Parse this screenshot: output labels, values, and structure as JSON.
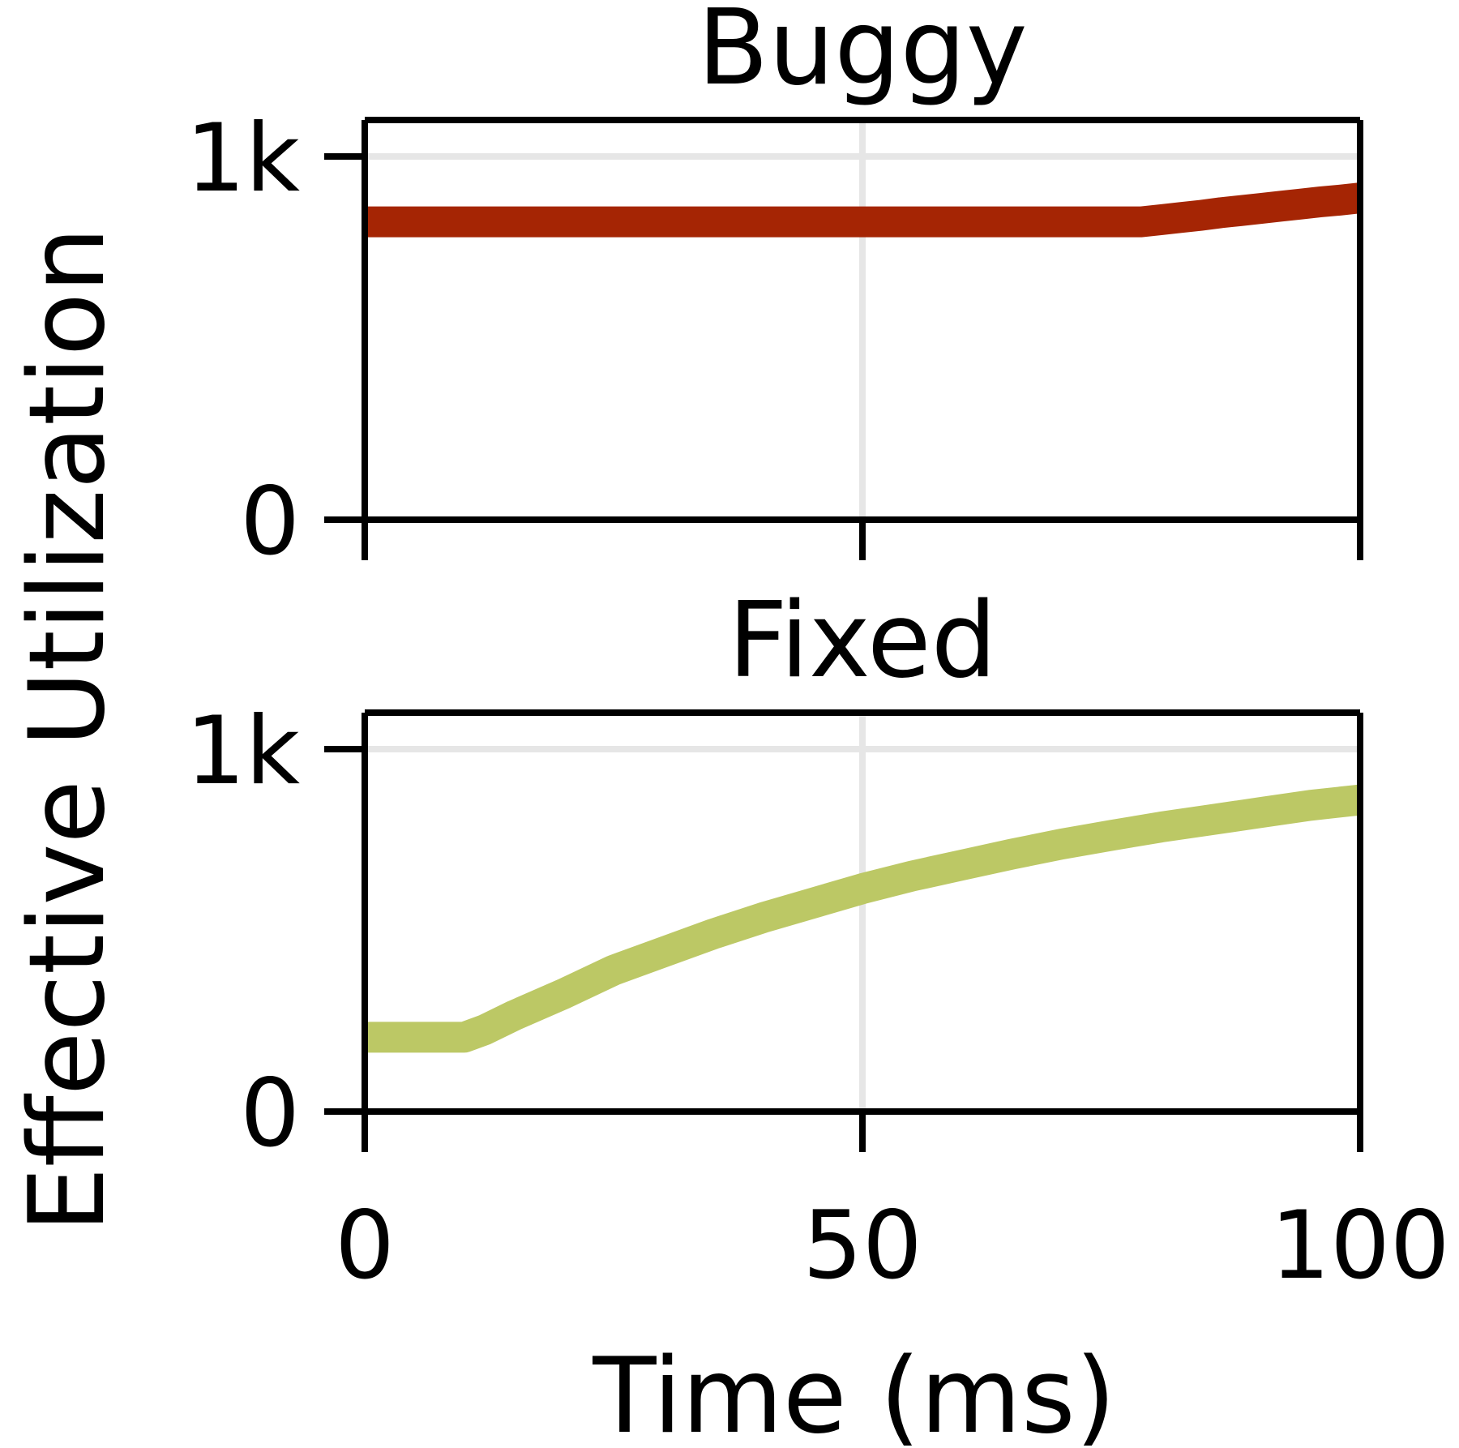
{
  "ylabel": "Effective Utilization",
  "xlabel": "Time (ms)",
  "colors": {
    "grid": "#e6e6e6",
    "frame": "#000000"
  },
  "chart_data": [
    {
      "type": "line",
      "title": "Buggy",
      "xlabel": "Time (ms)",
      "ylabel": "Effective Utilization",
      "xlim": [
        0,
        100
      ],
      "ylim": [
        -30,
        1100
      ],
      "xticks": [
        0,
        50,
        100
      ],
      "xtick_labels": [
        "0",
        "50",
        "100"
      ],
      "yticks": [
        0,
        1000
      ],
      "ytick_labels": [
        "0",
        "1k"
      ],
      "grid": true,
      "color": "#a52504",
      "series": [
        {
          "x": [
            0,
            10,
            20,
            30,
            40,
            50,
            60,
            70,
            78,
            80,
            82,
            84,
            86,
            88,
            90,
            92,
            94,
            96,
            98,
            100
          ],
          "values": [
            820,
            820,
            820,
            820,
            820,
            820,
            820,
            820,
            820,
            826,
            832,
            838,
            845,
            851,
            857,
            863,
            869,
            875,
            880,
            886
          ]
        }
      ]
    },
    {
      "type": "line",
      "title": "Fixed",
      "xlabel": "Time (ms)",
      "ylabel": "Effective Utilization",
      "xlim": [
        0,
        100
      ],
      "ylim": [
        -30,
        1100
      ],
      "xticks": [
        0,
        50,
        100
      ],
      "xtick_labels": [
        "0",
        "50",
        "100"
      ],
      "yticks": [
        0,
        1000
      ],
      "ytick_labels": [
        "0",
        "1k"
      ],
      "grid": true,
      "color": "#bcc865",
      "series": [
        {
          "x": [
            0,
            5,
            10,
            12,
            15,
            20,
            25,
            30,
            35,
            40,
            45,
            50,
            55,
            60,
            65,
            70,
            75,
            80,
            85,
            90,
            95,
            100
          ],
          "values": [
            205,
            205,
            205,
            225,
            265,
            325,
            390,
            440,
            490,
            535,
            575,
            615,
            650,
            680,
            710,
            738,
            762,
            785,
            805,
            825,
            845,
            860
          ]
        }
      ]
    }
  ]
}
